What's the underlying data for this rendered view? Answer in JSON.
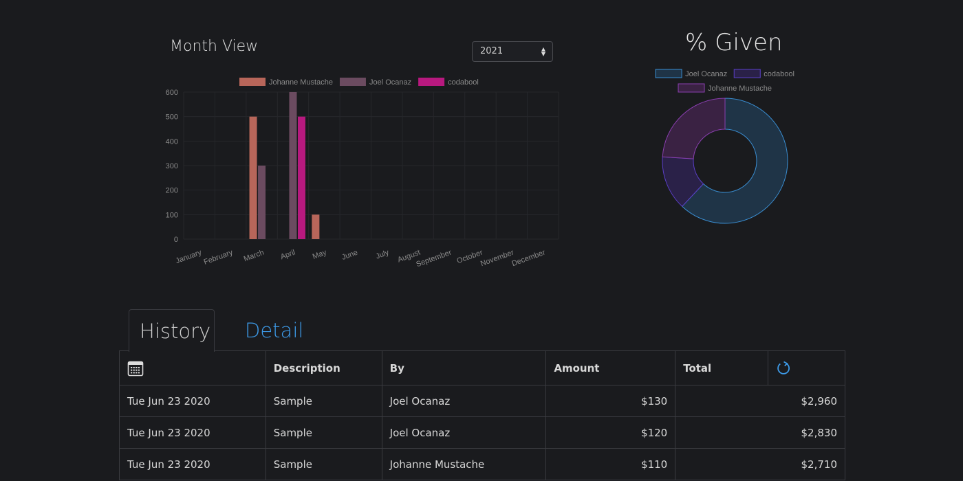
{
  "month_view": {
    "title": "Month View",
    "year_select": {
      "value": "2021"
    }
  },
  "given": {
    "title": "% Given"
  },
  "tabs": [
    {
      "label": "History",
      "active": true
    },
    {
      "label": "Detail",
      "active": false
    }
  ],
  "table": {
    "headers": [
      "",
      "Description",
      "By",
      "Amount",
      "Total",
      ""
    ],
    "header_icons": {
      "date": "calendar-icon",
      "refresh": "refresh-icon"
    },
    "rows": [
      {
        "date": "Tue Jun 23 2020",
        "description": "Sample",
        "by": "Joel Ocanaz",
        "amount": "$130",
        "total": "$2,960"
      },
      {
        "date": "Tue Jun 23 2020",
        "description": "Sample",
        "by": "Joel Ocanaz",
        "amount": "$120",
        "total": "$2,830"
      },
      {
        "date": "Tue Jun 23 2020",
        "description": "Sample",
        "by": "Johanne Mustache",
        "amount": "$110",
        "total": "$2,710"
      }
    ]
  },
  "chart_data": [
    {
      "type": "bar",
      "categories": [
        "January",
        "February",
        "March",
        "April",
        "May",
        "June",
        "July",
        "August",
        "September",
        "October",
        "November",
        "December"
      ],
      "series": [
        {
          "name": "Johanne Mustache",
          "color": "#b8665a",
          "values": [
            0,
            0,
            500,
            0,
            100,
            0,
            0,
            0,
            0,
            0,
            0,
            0
          ]
        },
        {
          "name": "Joel Ocanaz",
          "color": "#6b4b60",
          "values": [
            0,
            0,
            300,
            600,
            0,
            0,
            0,
            0,
            0,
            0,
            0,
            0
          ]
        },
        {
          "name": "codabool",
          "color": "#b8197f",
          "values": [
            0,
            0,
            0,
            500,
            0,
            0,
            0,
            0,
            0,
            0,
            0,
            0
          ]
        }
      ],
      "yticks": [
        0,
        100,
        200,
        300,
        400,
        500,
        600
      ],
      "ylim": [
        0,
        600
      ],
      "legend": "top",
      "grid": true
    },
    {
      "type": "pie",
      "labels": [
        "Joel Ocanaz",
        "codabool",
        "Johanne Mustache"
      ],
      "values": [
        62,
        14,
        24
      ],
      "colors": [
        "#3a8fd4",
        "#5b3fc8",
        "#8a3fb0"
      ],
      "fill_colors": [
        "#1f3447",
        "#2a2148",
        "#3a2243"
      ],
      "legend": "top"
    }
  ]
}
